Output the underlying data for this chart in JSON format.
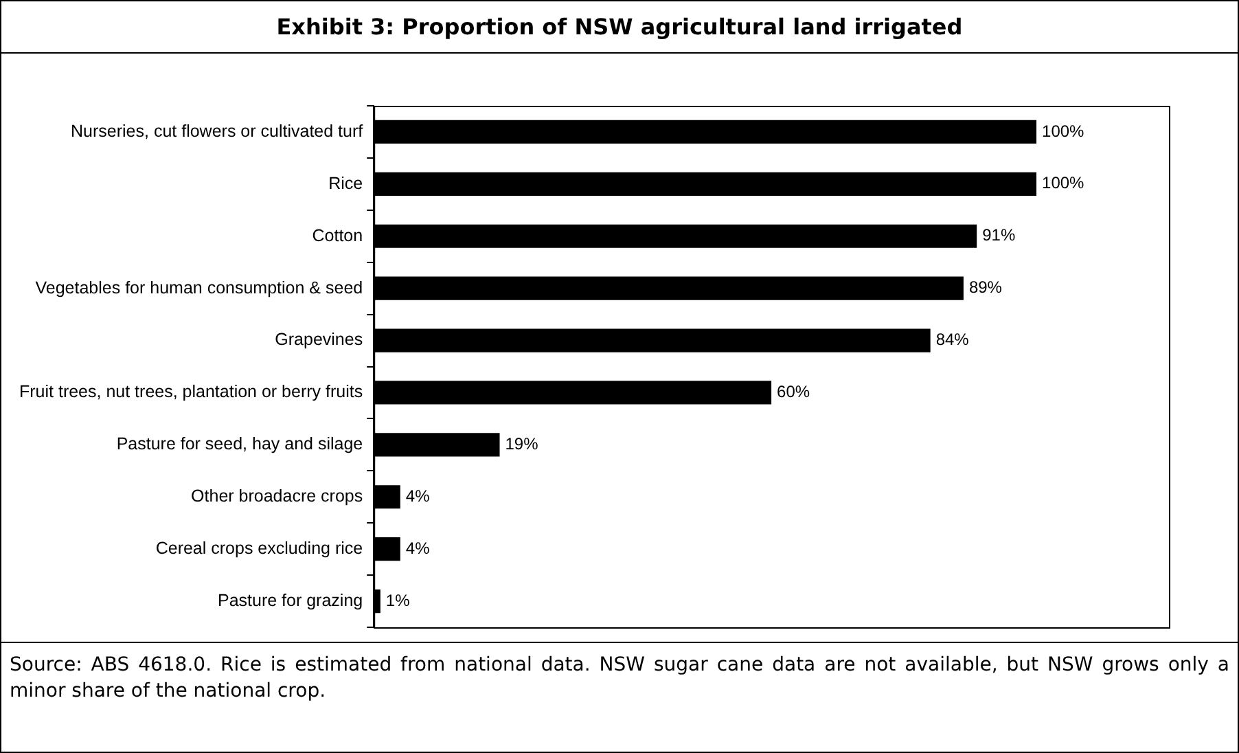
{
  "chart_data": {
    "type": "bar",
    "orientation": "horizontal",
    "title": "Exhibit 3: Proportion of NSW agricultural land irrigated",
    "categories": [
      "Nurseries, cut flowers or cultivated turf",
      "Rice",
      "Cotton",
      "Vegetables for human consumption & seed",
      "Grapevines",
      "Fruit trees, nut trees, plantation or berry fruits",
      "Pasture for seed, hay and silage",
      "Other broadacre crops",
      "Cereal crops excluding rice",
      "Pasture for grazing"
    ],
    "values": [
      100,
      100,
      91,
      89,
      84,
      60,
      19,
      4,
      4,
      1
    ],
    "value_labels": [
      "100%",
      "100%",
      "91%",
      "89%",
      "84%",
      "60%",
      "19%",
      "4%",
      "4%",
      "1%"
    ],
    "color": "#000000",
    "legend": false,
    "tick_labels": "y",
    "annotations": [
      "Source: ABS 4618.0. Rice is estimated from national data. NSW sugar cane data are not available, but NSW grows only a minor share of the national crop."
    ]
  }
}
